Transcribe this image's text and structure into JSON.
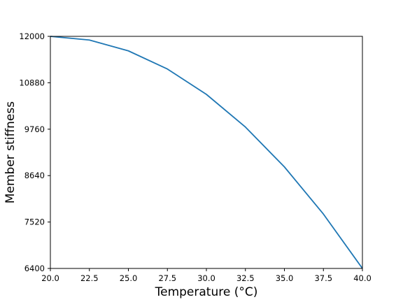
{
  "chart_data": {
    "type": "line",
    "xlabel": "Temperature (°C)",
    "ylabel": "Member stiffness",
    "xlim": [
      20.0,
      40.0
    ],
    "ylim": [
      6400,
      12000
    ],
    "xticks": [
      "20.0",
      "22.5",
      "25.0",
      "27.5",
      "30.0",
      "32.5",
      "35.0",
      "37.5",
      "40.0"
    ],
    "yticks": [
      "6400",
      "7520",
      "8640",
      "9760",
      "10880",
      "12000"
    ],
    "grid": false,
    "series": [
      {
        "color": "#1f77b4",
        "x": [
          20.0,
          22.5,
          25.0,
          27.5,
          30.0,
          32.5,
          35.0,
          37.5,
          40.0
        ],
        "y": [
          12000,
          11912,
          11650,
          11212,
          10600,
          9812,
          8850,
          7712,
          6400
        ]
      }
    ]
  }
}
